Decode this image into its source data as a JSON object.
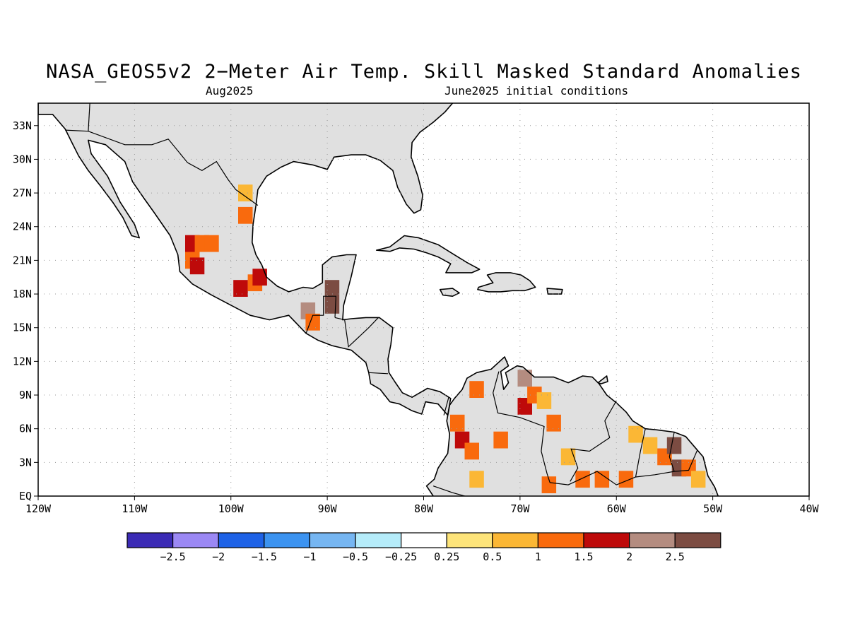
{
  "title": "NASA_GEOS5v2 2−Meter Air Temp. Skill Masked Standard Anomalies",
  "subtitle_left": "Aug2025",
  "subtitle_right": "June2025 initial conditions",
  "map": {
    "lon_range": [
      -120,
      -40
    ],
    "lat_range": [
      0,
      35
    ],
    "lon_ticks": [
      -120,
      -110,
      -100,
      -90,
      -80,
      -70,
      -60,
      -50,
      -40
    ],
    "lon_tick_labels": [
      "120W",
      "110W",
      "100W",
      "90W",
      "80W",
      "70W",
      "60W",
      "50W",
      "40W"
    ],
    "lat_ticks": [
      0,
      3,
      6,
      9,
      12,
      15,
      18,
      21,
      24,
      27,
      30,
      33
    ],
    "lat_tick_labels": [
      "EQ",
      "3N",
      "6N",
      "9N",
      "12N",
      "15N",
      "18N",
      "21N",
      "24N",
      "27N",
      "30N",
      "33N"
    ],
    "grid": "dotted",
    "land_color": "#e0e0e0",
    "ocean_color": "#ffffff"
  },
  "colorbar": {
    "labels": [
      "−2.5",
      "−2",
      "−1.5",
      "−1",
      "−0.5",
      "−0.25",
      "0.25",
      "0.5",
      "1",
      "1.5",
      "2",
      "2.5"
    ],
    "colors": [
      "#3b2bb5",
      "#9b88f4",
      "#1e62e6",
      "#3c93f0",
      "#76b6f2",
      "#b5ecfa",
      "#ffffff",
      "#fde47a",
      "#fbb735",
      "#f96a0d",
      "#be0a0a",
      "#b48c80",
      "#7c4c42"
    ]
  },
  "anomaly_cells": [
    {
      "lon": -104,
      "lat": 22.5,
      "value": 1.5
    },
    {
      "lon": -103,
      "lat": 22.5,
      "value": 1.2
    },
    {
      "lon": -102,
      "lat": 22.5,
      "value": 1.2
    },
    {
      "lon": -104,
      "lat": 21,
      "value": 1.2
    },
    {
      "lon": -103.5,
      "lat": 20.5,
      "value": 1.7
    },
    {
      "lon": -98.5,
      "lat": 27,
      "value": 0.7
    },
    {
      "lon": -98.5,
      "lat": 25,
      "value": 1.2
    },
    {
      "lon": -99,
      "lat": 18.5,
      "value": 1.7
    },
    {
      "lon": -97.5,
      "lat": 19,
      "value": 1.2
    },
    {
      "lon": -97,
      "lat": 19.5,
      "value": 1.7
    },
    {
      "lon": -92,
      "lat": 16.5,
      "value": 2.3
    },
    {
      "lon": -91.5,
      "lat": 15.5,
      "value": 1.2
    },
    {
      "lon": -89.5,
      "lat": 18.5,
      "value": 2.7
    },
    {
      "lon": -89.5,
      "lat": 17,
      "value": 2.7
    },
    {
      "lon": -74.5,
      "lat": 9.5,
      "value": 1.2
    },
    {
      "lon": -76.5,
      "lat": 6.5,
      "value": 1.2
    },
    {
      "lon": -76,
      "lat": 5,
      "value": 1.7
    },
    {
      "lon": -75,
      "lat": 4,
      "value": 1.2
    },
    {
      "lon": -74.5,
      "lat": 1.5,
      "value": 0.7
    },
    {
      "lon": -72,
      "lat": 5,
      "value": 1.2
    },
    {
      "lon": -69.5,
      "lat": 10.5,
      "value": 2.3
    },
    {
      "lon": -69.5,
      "lat": 8,
      "value": 1.7
    },
    {
      "lon": -68.5,
      "lat": 9,
      "value": 1.2
    },
    {
      "lon": -67.5,
      "lat": 8.5,
      "value": 0.7
    },
    {
      "lon": -66.5,
      "lat": 6.5,
      "value": 1.2
    },
    {
      "lon": -65,
      "lat": 3.5,
      "value": 0.7
    },
    {
      "lon": -67,
      "lat": 1,
      "value": 1.2
    },
    {
      "lon": -63.5,
      "lat": 1.5,
      "value": 1.2
    },
    {
      "lon": -61.5,
      "lat": 1.5,
      "value": 1.2
    },
    {
      "lon": -59,
      "lat": 1.5,
      "value": 1.2
    },
    {
      "lon": -56.5,
      "lat": 4.5,
      "value": 0.7
    },
    {
      "lon": -55,
      "lat": 3.5,
      "value": 1.2
    },
    {
      "lon": -54,
      "lat": 4.5,
      "value": 2.7
    },
    {
      "lon": -53.5,
      "lat": 2.5,
      "value": 2.7
    },
    {
      "lon": -52.5,
      "lat": 2.5,
      "value": 1.2
    },
    {
      "lon": -51.5,
      "lat": 1.5,
      "value": 0.7
    },
    {
      "lon": -58,
      "lat": 5.5,
      "value": 0.7
    }
  ]
}
